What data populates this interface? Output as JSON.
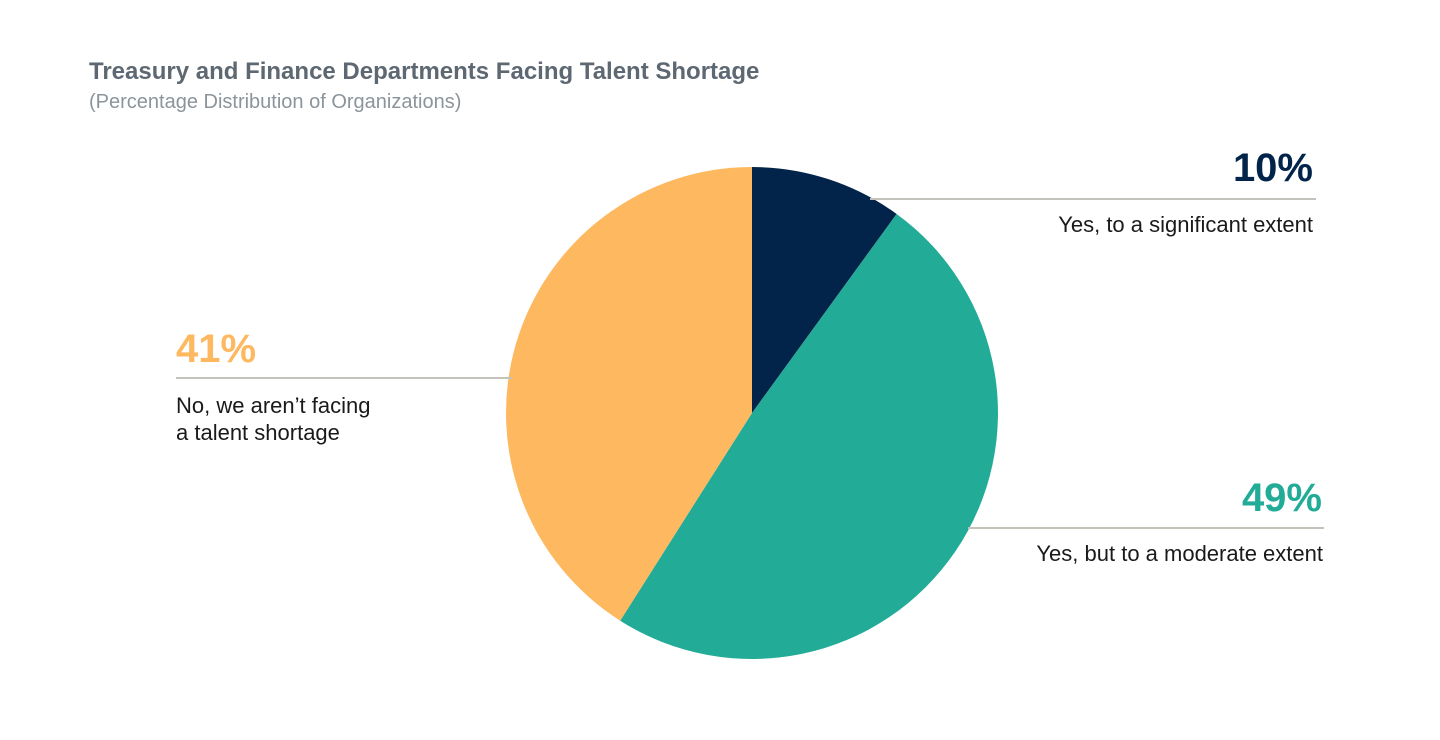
{
  "title": "Treasury and Finance Departments Facing Talent Shortage",
  "subtitle": "(Percentage Distribution of Organizations)",
  "chart_data": {
    "type": "pie",
    "title": "Treasury and Finance Departments Facing Talent Shortage",
    "subtitle": "(Percentage Distribution of Organizations)",
    "slices": [
      {
        "label": "Yes, to a significant extent",
        "value": 10,
        "value_label": "10%",
        "color": "#03244a"
      },
      {
        "label": "Yes, but to a moderate extent",
        "value": 49,
        "value_label": "49%",
        "color": "#22ab97"
      },
      {
        "label_lines": [
          "No, we aren’t facing",
          "a talent shortage"
        ],
        "value": 41,
        "value_label": "41%",
        "color": "#fdb860"
      }
    ]
  }
}
